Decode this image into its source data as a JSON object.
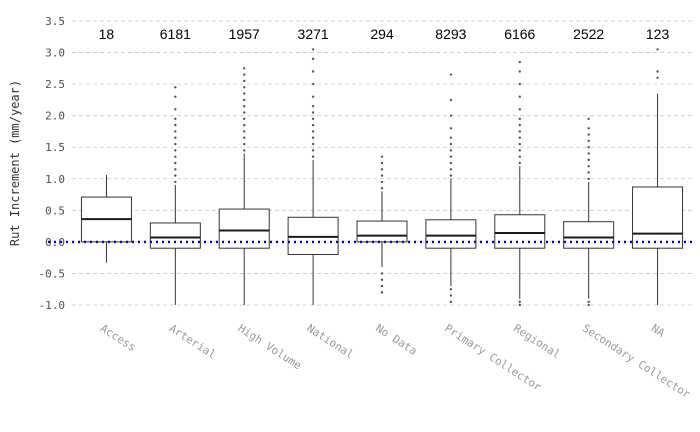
{
  "chart_data": {
    "type": "boxplot",
    "ylabel": "Rut Increment (mm/year)",
    "xlabel": "",
    "ylim": [
      -1.0,
      3.5
    ],
    "yticks": [
      -1.0,
      -0.5,
      0.0,
      0.5,
      1.0,
      1.5,
      2.0,
      2.5,
      3.0,
      3.5
    ],
    "ytick_labels": [
      "-1.0",
      "-0.5",
      "0.0",
      "0.5",
      "1.0",
      "1.5",
      "2.0",
      "2.5",
      "3.0",
      "3.5"
    ],
    "grid": true,
    "reference_line": {
      "y": 0.0,
      "color": "#0000cc"
    },
    "series": [
      {
        "name": "Access",
        "count": "18",
        "q1": 0.0,
        "median": 0.36,
        "q3": 0.71,
        "whisker_low": -0.33,
        "whisker_high": 1.06,
        "outliers": []
      },
      {
        "name": "Arterial",
        "count": "6181",
        "q1": -0.1,
        "median": 0.07,
        "q3": 0.3,
        "whisker_low": -1.0,
        "whisker_high": 0.9,
        "outliers": [
          0.95,
          1.05,
          1.15,
          1.25,
          1.35,
          1.45,
          1.55,
          1.65,
          1.75,
          1.85,
          1.95,
          2.1,
          2.3,
          2.45
        ]
      },
      {
        "name": "High Volume",
        "count": "1957",
        "q1": -0.1,
        "median": 0.18,
        "q3": 0.52,
        "whisker_low": -1.0,
        "whisker_high": 1.4,
        "outliers": [
          1.45,
          1.55,
          1.65,
          1.75,
          1.85,
          1.95,
          2.05,
          2.15,
          2.25,
          2.35,
          2.45,
          2.55,
          2.65,
          2.75
        ]
      },
      {
        "name": "National",
        "count": "3271",
        "q1": -0.2,
        "median": 0.08,
        "q3": 0.39,
        "whisker_low": -1.0,
        "whisker_high": 1.3,
        "outliers": [
          1.35,
          1.45,
          1.55,
          1.65,
          1.75,
          1.85,
          1.95,
          2.05,
          2.15,
          2.3,
          2.5,
          2.7,
          2.9,
          3.05
        ]
      },
      {
        "name": "No Data",
        "count": "294",
        "q1": 0.0,
        "median": 0.1,
        "q3": 0.33,
        "whisker_low": -0.4,
        "whisker_high": 0.8,
        "outliers": [
          -0.5,
          -0.6,
          -0.7,
          -0.8,
          0.85,
          0.95,
          1.05,
          1.15,
          1.25,
          1.35
        ]
      },
      {
        "name": "Primary Collector",
        "count": "8293",
        "q1": -0.1,
        "median": 0.1,
        "q3": 0.35,
        "whisker_low": -0.7,
        "whisker_high": 1.0,
        "outliers": [
          -0.75,
          -0.85,
          -0.95,
          1.05,
          1.15,
          1.25,
          1.35,
          1.45,
          1.55,
          1.65,
          1.8,
          2.0,
          2.25,
          2.65
        ]
      },
      {
        "name": "Regional",
        "count": "6166",
        "q1": -0.1,
        "median": 0.14,
        "q3": 0.43,
        "whisker_low": -0.9,
        "whisker_high": 1.2,
        "outliers": [
          -0.95,
          -1.0,
          1.25,
          1.35,
          1.45,
          1.55,
          1.65,
          1.75,
          1.85,
          1.95,
          2.1,
          2.3,
          2.5,
          2.7,
          2.85
        ]
      },
      {
        "name": "Secondary Collector",
        "count": "2522",
        "q1": -0.1,
        "median": 0.07,
        "q3": 0.32,
        "whisker_low": -0.9,
        "whisker_high": 0.95,
        "outliers": [
          -0.95,
          -1.0,
          1.0,
          1.1,
          1.2,
          1.3,
          1.4,
          1.5,
          1.6,
          1.7,
          1.8,
          1.95
        ]
      },
      {
        "name": "NA",
        "count": "123",
        "q1": -0.1,
        "median": 0.13,
        "q3": 0.87,
        "whisker_low": -1.0,
        "whisker_high": 2.35,
        "outliers": [
          2.6,
          2.7,
          3.05
        ]
      }
    ]
  }
}
